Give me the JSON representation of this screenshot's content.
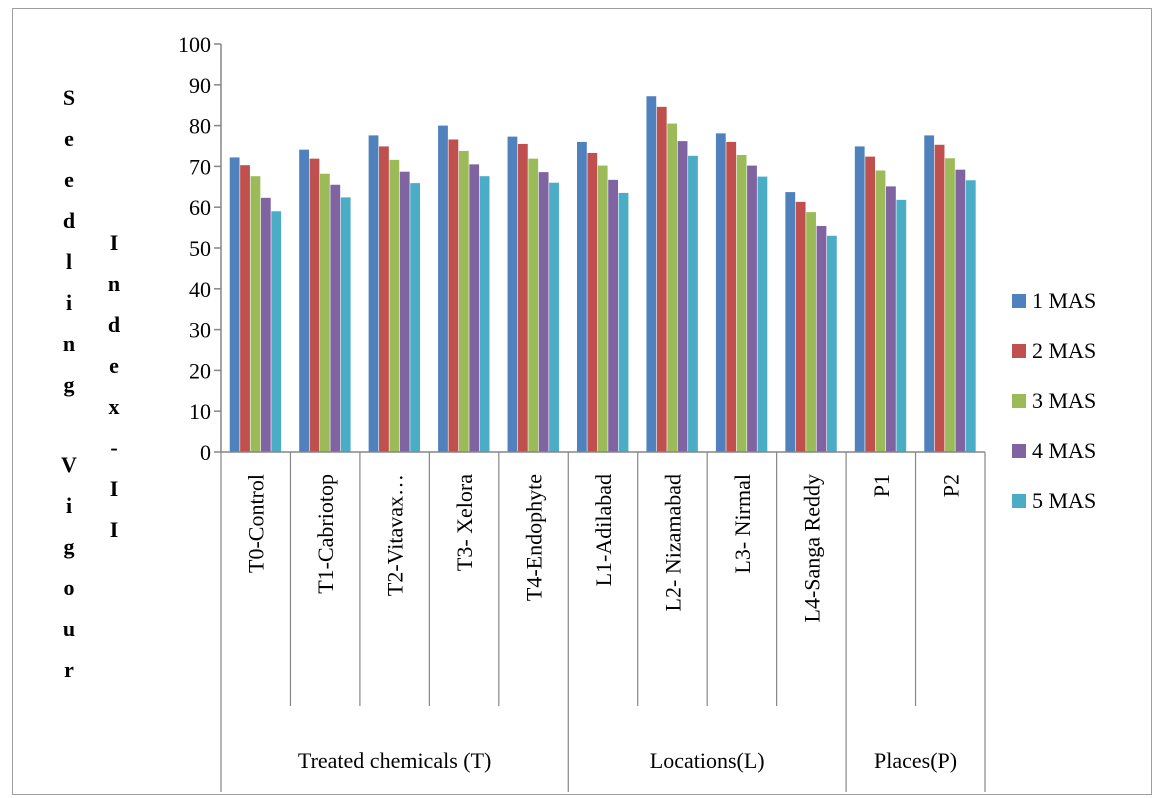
{
  "chart_data": {
    "type": "bar",
    "ylabel_part1": "Seedling Vigour",
    "ylabel_part2": "Index-II",
    "ylim": [
      0,
      100
    ],
    "yticks": [
      0,
      10,
      20,
      30,
      40,
      50,
      60,
      70,
      80,
      90,
      100
    ],
    "categories": [
      "T0-Control",
      "T1-Cabriotop",
      "T2-Vitavax…",
      "T3- Xelora",
      "T4-Endophyte",
      "L1-Adilabad",
      "L2- Nizamabad",
      "L3- Nirmal",
      "L4-Sanga Reddy",
      "P1",
      "P2"
    ],
    "groups": [
      {
        "label": "Treated chemicals (T)",
        "count": 5
      },
      {
        "label": "Locations(L)",
        "count": 4
      },
      {
        "label": "Places(P)",
        "count": 2
      }
    ],
    "series": [
      {
        "name": "1 MAS",
        "color": "#4F81BD",
        "values": [
          72.2,
          74.1,
          77.6,
          80.0,
          77.3,
          76.0,
          87.2,
          78.1,
          63.7,
          74.9,
          77.6
        ]
      },
      {
        "name": "2 MAS",
        "color": "#C0504D",
        "values": [
          70.3,
          71.9,
          74.9,
          76.6,
          75.5,
          73.3,
          84.6,
          76.0,
          61.3,
          72.4,
          75.3
        ]
      },
      {
        "name": "3 MAS",
        "color": "#9BBB59",
        "values": [
          67.6,
          68.2,
          71.6,
          73.8,
          71.9,
          70.2,
          80.5,
          72.8,
          58.8,
          69.0,
          72.0
        ]
      },
      {
        "name": "4 MAS",
        "color": "#8064A2",
        "values": [
          62.3,
          65.5,
          68.7,
          70.5,
          68.6,
          66.7,
          76.2,
          70.2,
          55.4,
          65.1,
          69.2
        ]
      },
      {
        "name": "5 MAS",
        "color": "#4BACC6",
        "values": [
          59.0,
          62.4,
          65.9,
          67.6,
          66.0,
          63.5,
          72.6,
          67.5,
          53.0,
          61.8,
          66.6
        ]
      }
    ],
    "legend_position": "right",
    "grid": false
  }
}
